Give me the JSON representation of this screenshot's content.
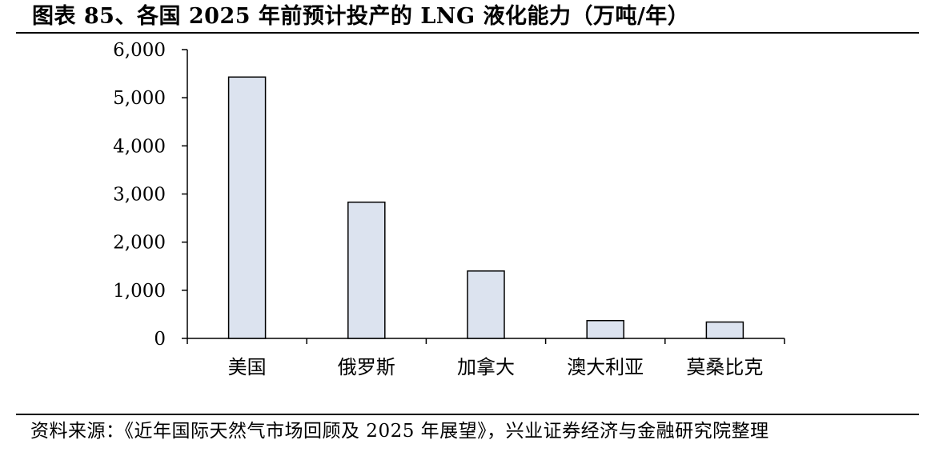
{
  "header": {
    "title": "图表 85、各国 2025 年前预计投产的 LNG 液化能力（万吨/年）"
  },
  "footer": {
    "source": "资料来源：《近年国际天然气市场回顾及 2025 年展望》，兴业证券经济与金融研究院整理"
  },
  "colors": {
    "bar_fill": "#dce3ef",
    "bar_stroke": "#000000",
    "axis": "#000000"
  },
  "chart_data": {
    "type": "bar",
    "title": "",
    "xlabel": "",
    "ylabel": "",
    "categories": [
      "美国",
      "俄罗斯",
      "加拿大",
      "澳大利亚",
      "莫桑比克"
    ],
    "values": [
      5430,
      2830,
      1400,
      370,
      340
    ],
    "ylim": [
      0,
      6000
    ],
    "yticks": [
      0,
      1000,
      2000,
      3000,
      4000,
      5000,
      6000
    ],
    "ytick_labels": [
      "0",
      "1,000",
      "2,000",
      "3,000",
      "4,000",
      "5,000",
      "6,000"
    ],
    "grid": false,
    "legend": "none"
  }
}
